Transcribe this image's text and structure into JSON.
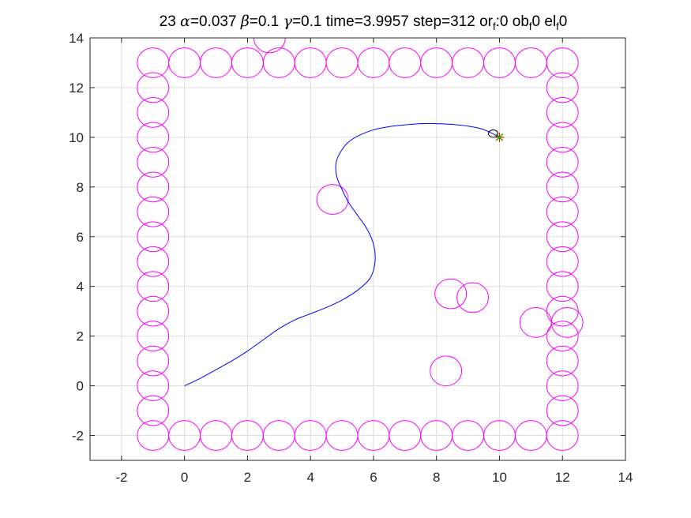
{
  "chart_data": {
    "type": "line",
    "title": {
      "prefix": "23 ",
      "alpha_symbol": "α",
      "alpha_value": "=0.037 ",
      "beta_symbol": "β",
      "beta_value": "=0.1 ",
      "gamma_symbol": "γ",
      "gamma_value": "=0.1 time=3.9957 step=312 or",
      "sub1": "f",
      "mid1": ":0 ob",
      "sub2": "f",
      "mid2": "0 el",
      "sub3": "f",
      "end": "0"
    },
    "xlim": [
      -3,
      14
    ],
    "ylim": [
      -3,
      14
    ],
    "xticks": [
      -2,
      0,
      2,
      4,
      6,
      8,
      10,
      12,
      14
    ],
    "yticks": [
      -2,
      0,
      2,
      4,
      6,
      8,
      10,
      12,
      14
    ],
    "xtick_labels": [
      "-2",
      "0",
      "2",
      "4",
      "6",
      "8",
      "10",
      "12",
      "14"
    ],
    "ytick_labels": [
      "-2",
      "0",
      "2",
      "4",
      "6",
      "8",
      "10",
      "12",
      "14"
    ],
    "grid": true,
    "obstacle_radius_x": 0.5,
    "obstacle_radius_y": 0.6,
    "obstacles": [
      [
        -1,
        -2
      ],
      [
        -1,
        -1
      ],
      [
        -1,
        0
      ],
      [
        -1,
        1
      ],
      [
        -1,
        2
      ],
      [
        -1,
        3
      ],
      [
        -1,
        4
      ],
      [
        -1,
        5
      ],
      [
        -1,
        6
      ],
      [
        -1,
        7
      ],
      [
        -1,
        8
      ],
      [
        -1,
        9
      ],
      [
        -1,
        10
      ],
      [
        -1,
        11
      ],
      [
        -1,
        12
      ],
      [
        -1,
        13
      ],
      [
        0,
        -2
      ],
      [
        1,
        -2
      ],
      [
        2,
        -2
      ],
      [
        3,
        -2
      ],
      [
        4,
        -2
      ],
      [
        5,
        -2
      ],
      [
        6,
        -2
      ],
      [
        7,
        -2
      ],
      [
        8,
        -2
      ],
      [
        9,
        -2
      ],
      [
        10,
        -2
      ],
      [
        11,
        -2
      ],
      [
        12,
        -2
      ],
      [
        0,
        13
      ],
      [
        1,
        13
      ],
      [
        2,
        13
      ],
      [
        3,
        13
      ],
      [
        4,
        13
      ],
      [
        5,
        13
      ],
      [
        6,
        13
      ],
      [
        7,
        13
      ],
      [
        8,
        13
      ],
      [
        9,
        13
      ],
      [
        10,
        13
      ],
      [
        11,
        13
      ],
      [
        12,
        13
      ],
      [
        12,
        -1
      ],
      [
        12,
        0
      ],
      [
        12,
        1
      ],
      [
        12,
        2
      ],
      [
        12,
        3
      ],
      [
        12,
        4
      ],
      [
        12,
        5
      ],
      [
        12,
        6
      ],
      [
        12,
        7
      ],
      [
        12,
        8
      ],
      [
        12,
        9
      ],
      [
        12,
        10
      ],
      [
        12,
        11
      ],
      [
        12,
        12
      ],
      [
        2.7,
        14
      ],
      [
        4.7,
        7.5
      ],
      [
        8.45,
        3.7
      ],
      [
        9.15,
        3.55
      ],
      [
        11.15,
        2.55
      ],
      [
        12.15,
        2.55
      ],
      [
        8.3,
        0.6
      ]
    ],
    "trajectory": {
      "x": [
        0,
        0.5,
        1.0,
        1.5,
        2.0,
        2.5,
        3.0,
        3.5,
        4.0,
        4.5,
        5.0,
        5.5,
        5.9,
        6.05,
        6.0,
        5.8,
        5.5,
        5.2,
        5.0,
        4.85,
        4.8,
        4.85,
        5.0,
        5.2,
        5.5,
        6.0,
        6.5,
        7.0,
        7.5,
        8.0,
        8.5,
        9.0,
        9.4,
        9.7,
        10.0
      ],
      "y": [
        0,
        0.3,
        0.65,
        1.0,
        1.4,
        1.85,
        2.3,
        2.65,
        2.9,
        3.15,
        3.45,
        3.85,
        4.35,
        5.0,
        5.7,
        6.3,
        6.85,
        7.4,
        7.9,
        8.35,
        8.8,
        9.15,
        9.5,
        9.8,
        10.05,
        10.3,
        10.43,
        10.5,
        10.55,
        10.55,
        10.52,
        10.45,
        10.35,
        10.2,
        10.0
      ]
    },
    "robot": {
      "x": 9.8,
      "y": 10.15,
      "radius": 0.15
    },
    "goal": {
      "x": 10.0,
      "y": 10.0
    },
    "colors": {
      "obstacle": "#ff00ff",
      "trajectory": "#0000ff",
      "robot": "#000000",
      "goal_star": "#ff0000",
      "goal_cross": "#00c000",
      "grid": "#dedede",
      "axes": "#262626"
    }
  }
}
